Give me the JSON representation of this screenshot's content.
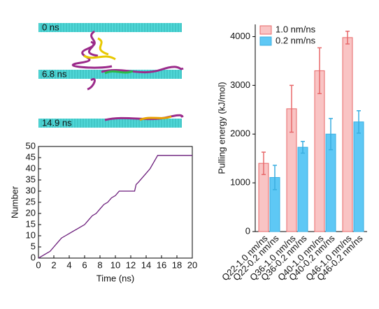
{
  "snapshots": {
    "labels": [
      "0 ns",
      "6.8 ns",
      "14.9 ns"
    ]
  },
  "chart_data": [
    {
      "type": "line",
      "xlabel": "Time (ns)",
      "ylabel": "Number",
      "color": "#6a1b7a",
      "x": [
        0,
        0.5,
        1,
        1.5,
        2,
        2.5,
        3,
        3.5,
        4,
        4.5,
        5,
        5.5,
        6,
        6.5,
        7,
        7.5,
        8,
        8.5,
        9,
        9.5,
        10,
        10.5,
        11,
        12,
        12.5,
        12.7,
        13,
        13.5,
        14,
        14.5,
        15,
        15.5,
        16,
        18,
        20
      ],
      "values": [
        0,
        1,
        2,
        3,
        5,
        7,
        9,
        10,
        11,
        12,
        13,
        14,
        15,
        17,
        19,
        20,
        22,
        24,
        25,
        27,
        28,
        30,
        30,
        30,
        30,
        33,
        34,
        36,
        38,
        40,
        43,
        46,
        46,
        46,
        46
      ],
      "xlim": [
        0,
        20
      ],
      "ylim": [
        0,
        50
      ],
      "xticks": [
        0,
        2,
        4,
        6,
        8,
        10,
        12,
        14,
        16,
        18,
        20
      ],
      "yticks": [
        0,
        5,
        10,
        15,
        20,
        25,
        30,
        35,
        40,
        45,
        50
      ]
    },
    {
      "type": "bar",
      "ylabel": "Pulling energy (kJ/mol)",
      "ylim": [
        0,
        4250
      ],
      "yticks": [
        0,
        1000,
        2000,
        3000,
        4000
      ],
      "legend": "upper left",
      "series": [
        {
          "name": "1.0 nm/ns",
          "color": "#f9c4c4",
          "edge": "#e8686a",
          "labels": [
            "Q22-1.0 nm/ns",
            "Q36-1.0 nm/ns",
            "Q40-1.0 nm/ns",
            "Q46-1.0 nm/ns"
          ],
          "values": [
            1400,
            2520,
            3300,
            3980
          ],
          "errors": [
            230,
            480,
            470,
            130
          ]
        },
        {
          "name": "0.2 nm/ns",
          "color": "#5ec8f5",
          "edge": "#3aaee0",
          "labels": [
            "Q22-0.2 nm/ns",
            "Q36-0.2 nm/ns",
            "Q40-0.2 nm/ns",
            "Q46-0.2 nm/ns"
          ],
          "values": [
            1110,
            1730,
            2000,
            2250
          ],
          "errors": [
            250,
            120,
            320,
            230
          ]
        }
      ]
    }
  ]
}
